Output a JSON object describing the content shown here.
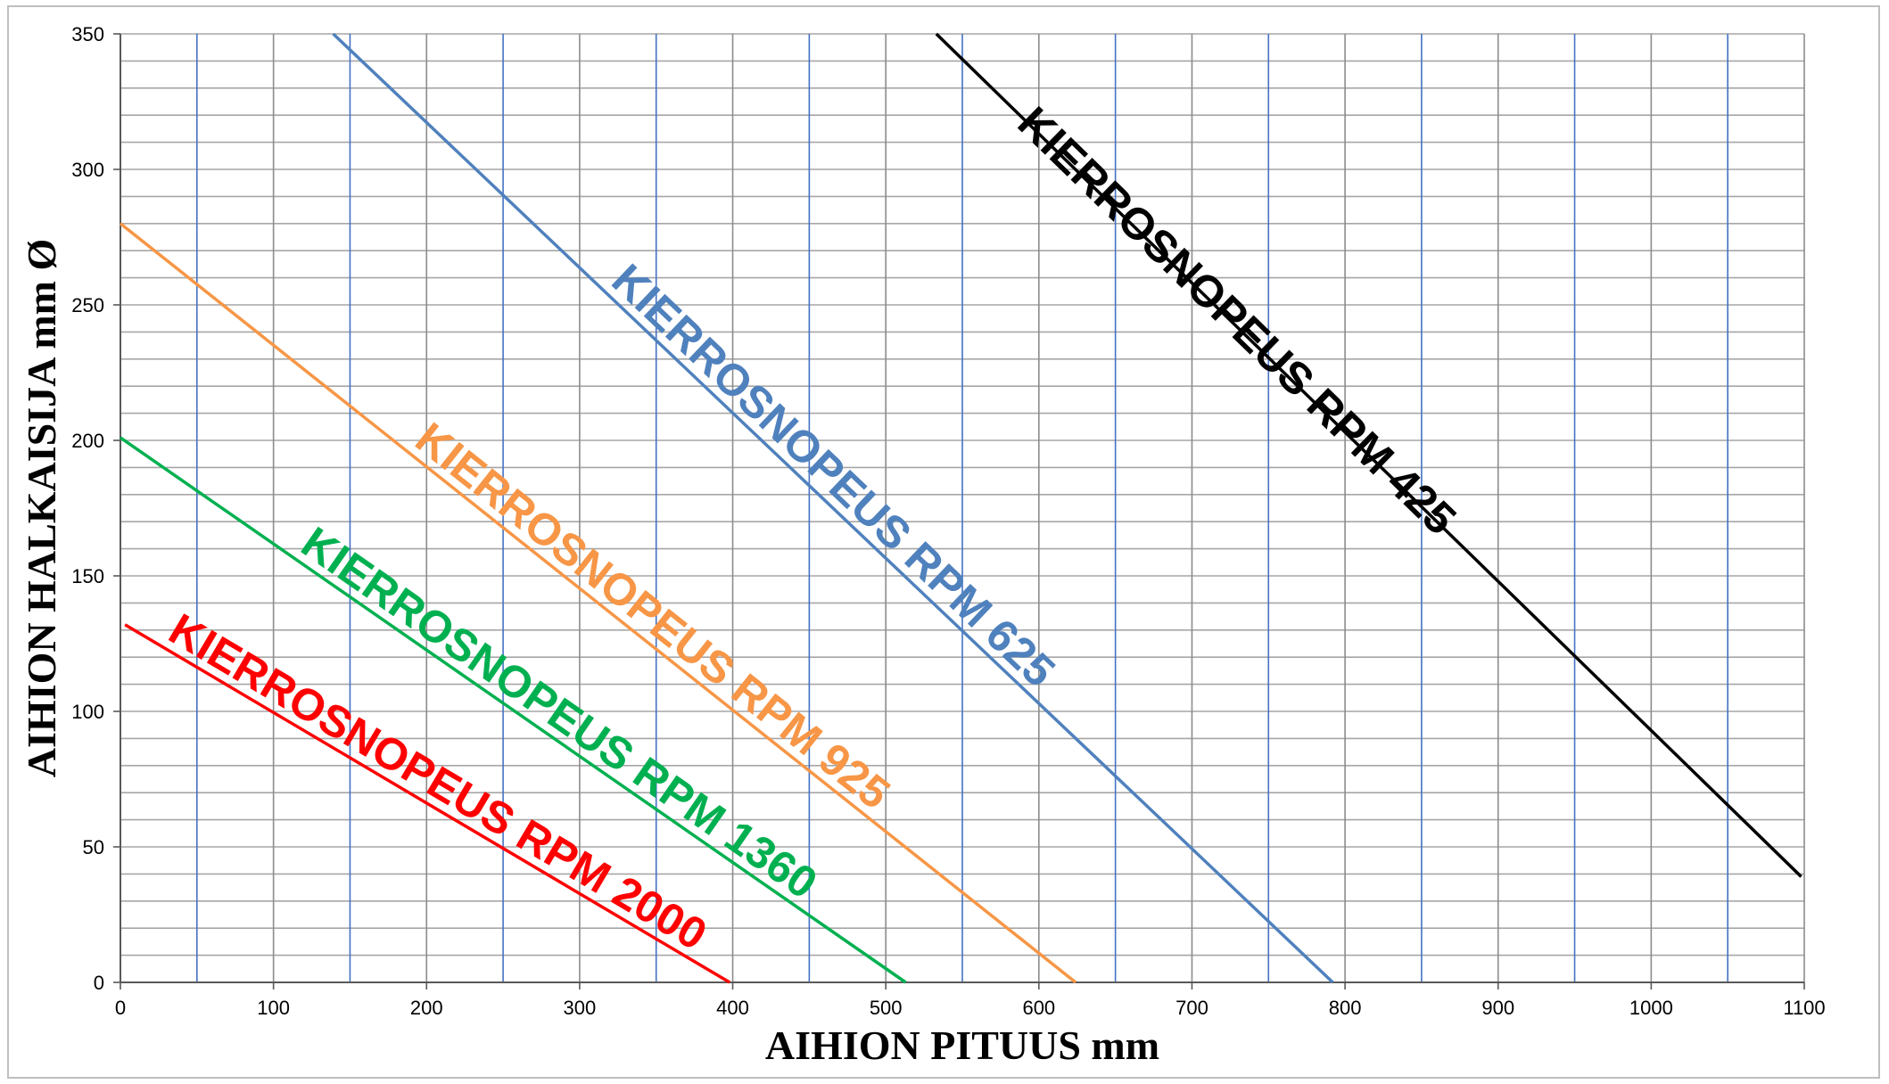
{
  "chart_data": {
    "type": "line",
    "title": "",
    "xlabel": "AIHION PITUUS mm",
    "ylabel": "AIHION HALKAISIJA mm Ø",
    "xlim": [
      0,
      1100
    ],
    "ylim": [
      0,
      350
    ],
    "x_ticks": [
      0,
      100,
      200,
      300,
      400,
      500,
      600,
      700,
      800,
      900,
      1000,
      1100
    ],
    "y_ticks": [
      0,
      50,
      100,
      150,
      200,
      250,
      300,
      350
    ],
    "grid": true,
    "series": [
      {
        "name": "KIERROSNOPEUS RPM 2000",
        "color": "#ff0000",
        "x": [
          3,
          398
        ],
        "y": [
          132,
          0
        ]
      },
      {
        "name": "KIERROSNOPEUS RPM 1360",
        "color": "#00b050",
        "x": [
          0,
          513
        ],
        "y": [
          201,
          0
        ]
      },
      {
        "name": "KIERROSNOPEUS RPM 925",
        "color": "#f79646",
        "x": [
          0,
          624
        ],
        "y": [
          280,
          0
        ]
      },
      {
        "name": "KIERROSNOPEUS RPM 625",
        "color": "#4f81bd",
        "x": [
          139,
          792
        ],
        "y": [
          350,
          0
        ]
      },
      {
        "name": "KIERROSNOPEUS RPM 425",
        "color": "#000000",
        "x": [
          533,
          1098
        ],
        "y": [
          350,
          39
        ]
      }
    ]
  }
}
